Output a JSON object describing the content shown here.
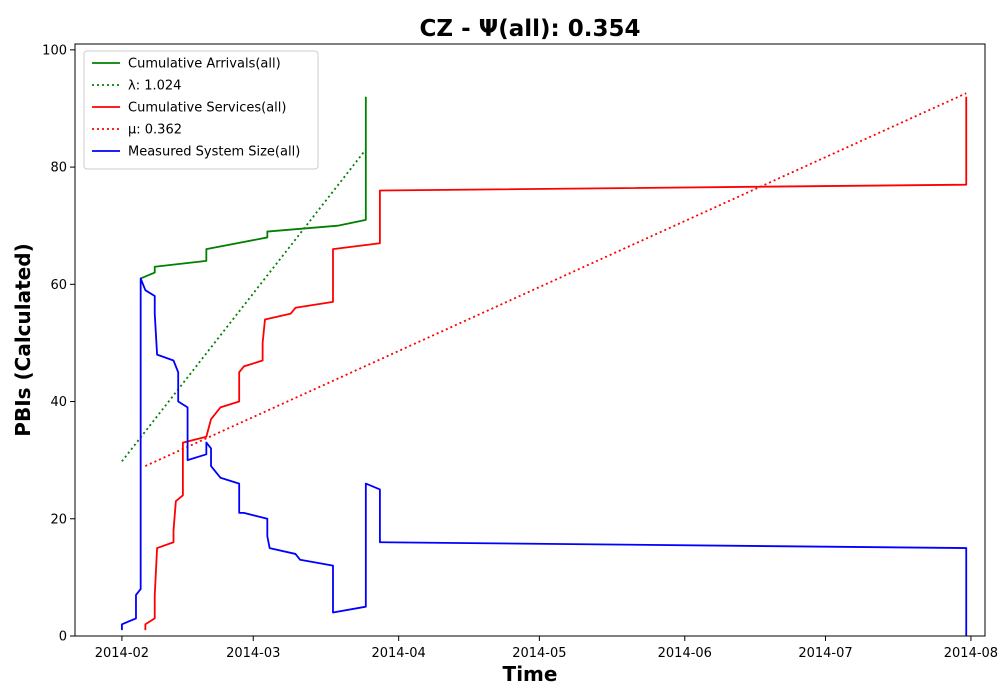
{
  "chart_data": {
    "type": "line",
    "title": "CZ -  Ψ(all): 0.354",
    "xlabel": "Time",
    "ylabel": "PBIs (Calculated)",
    "xlim": [
      "2014-01-22",
      "2014-08-04"
    ],
    "ylim": [
      0,
      101
    ],
    "yticks": [
      0,
      20,
      40,
      60,
      80,
      100
    ],
    "xticks": [
      {
        "date": "2014-02-01",
        "label": "2014-02"
      },
      {
        "date": "2014-03-01",
        "label": "2014-03"
      },
      {
        "date": "2014-04-01",
        "label": "2014-04"
      },
      {
        "date": "2014-05-01",
        "label": "2014-05"
      },
      {
        "date": "2014-06-01",
        "label": "2014-06"
      },
      {
        "date": "2014-07-01",
        "label": "2014-07"
      },
      {
        "date": "2014-08-01",
        "label": "2014-08"
      }
    ],
    "grid": false,
    "legend_position": "top-left",
    "series": [
      {
        "name": "Cumulative Arrivals(all)",
        "style": "solid",
        "color": "#008000",
        "points": [
          [
            "2014-02-05",
            61
          ],
          [
            "2014-02-08",
            62
          ],
          [
            "2014-02-08",
            63
          ],
          [
            "2014-02-19",
            64
          ],
          [
            "2014-02-19",
            66
          ],
          [
            "2014-03-04",
            68
          ],
          [
            "2014-03-04",
            69
          ],
          [
            "2014-03-19",
            70
          ],
          [
            "2014-03-25",
            71
          ],
          [
            "2014-03-25",
            92
          ]
        ]
      },
      {
        "name": "λ: 1.024",
        "style": "dotted",
        "color": "#008000",
        "points": [
          [
            "2014-02-01",
            29.8
          ],
          [
            "2014-03-25",
            83
          ]
        ]
      },
      {
        "name": "Cumulative Services(all)",
        "style": "solid",
        "color": "#ff0000",
        "points": [
          [
            "2014-02-06",
            1
          ],
          [
            "2014-02-06",
            2
          ],
          [
            "2014-02-08",
            3
          ],
          [
            "2014-02-08",
            7
          ],
          [
            "2014-02-08.5",
            15
          ],
          [
            "2014-02-12",
            16
          ],
          [
            "2014-02-12",
            18
          ],
          [
            "2014-02-12.5",
            23
          ],
          [
            "2014-02-14",
            24
          ],
          [
            "2014-02-14",
            33
          ],
          [
            "2014-02-19",
            34
          ],
          [
            "2014-02-20",
            37
          ],
          [
            "2014-02-22",
            39
          ],
          [
            "2014-02-26",
            40
          ],
          [
            "2014-02-26",
            45
          ],
          [
            "2014-02-27",
            46
          ],
          [
            "2014-03-03",
            47
          ],
          [
            "2014-03-03",
            50
          ],
          [
            "2014-03-03.5",
            54
          ],
          [
            "2014-03-09",
            55
          ],
          [
            "2014-03-10",
            56
          ],
          [
            "2014-03-18",
            57
          ],
          [
            "2014-03-18",
            66
          ],
          [
            "2014-03-28",
            67
          ],
          [
            "2014-03-28",
            76
          ],
          [
            "2014-07-31",
            77
          ],
          [
            "2014-07-31",
            92
          ]
        ]
      },
      {
        "name": "μ: 0.362",
        "style": "dotted",
        "color": "#ff0000",
        "points": [
          [
            "2014-02-06",
            29
          ],
          [
            "2014-07-31",
            92.6
          ]
        ]
      },
      {
        "name": "Measured System Size(all)",
        "style": "solid",
        "color": "#0000ff",
        "points": [
          [
            "2014-02-01",
            1
          ],
          [
            "2014-02-01",
            2
          ],
          [
            "2014-02-04",
            3
          ],
          [
            "2014-02-04",
            7
          ],
          [
            "2014-02-05",
            8
          ],
          [
            "2014-02-05",
            61
          ],
          [
            "2014-02-06",
            59
          ],
          [
            "2014-02-08",
            58
          ],
          [
            "2014-02-08",
            55
          ],
          [
            "2014-02-08.5",
            48
          ],
          [
            "2014-02-12",
            47
          ],
          [
            "2014-02-13",
            45
          ],
          [
            "2014-02-13",
            40
          ],
          [
            "2014-02-15",
            39
          ],
          [
            "2014-02-15",
            30
          ],
          [
            "2014-02-19",
            31
          ],
          [
            "2014-02-19",
            33
          ],
          [
            "2014-02-20",
            32
          ],
          [
            "2014-02-20",
            29
          ],
          [
            "2014-02-22",
            27
          ],
          [
            "2014-02-26",
            26
          ],
          [
            "2014-02-26",
            21
          ],
          [
            "2014-02-27",
            21
          ],
          [
            "2014-03-04",
            20
          ],
          [
            "2014-03-04",
            17
          ],
          [
            "2014-03-04.5",
            15
          ],
          [
            "2014-03-10",
            14
          ],
          [
            "2014-03-11",
            13
          ],
          [
            "2014-03-18",
            12
          ],
          [
            "2014-03-18",
            4
          ],
          [
            "2014-03-25",
            5
          ],
          [
            "2014-03-25",
            26
          ],
          [
            "2014-03-28",
            25
          ],
          [
            "2014-03-28",
            16
          ],
          [
            "2014-07-31",
            15
          ],
          [
            "2014-07-31",
            0
          ]
        ]
      }
    ]
  }
}
